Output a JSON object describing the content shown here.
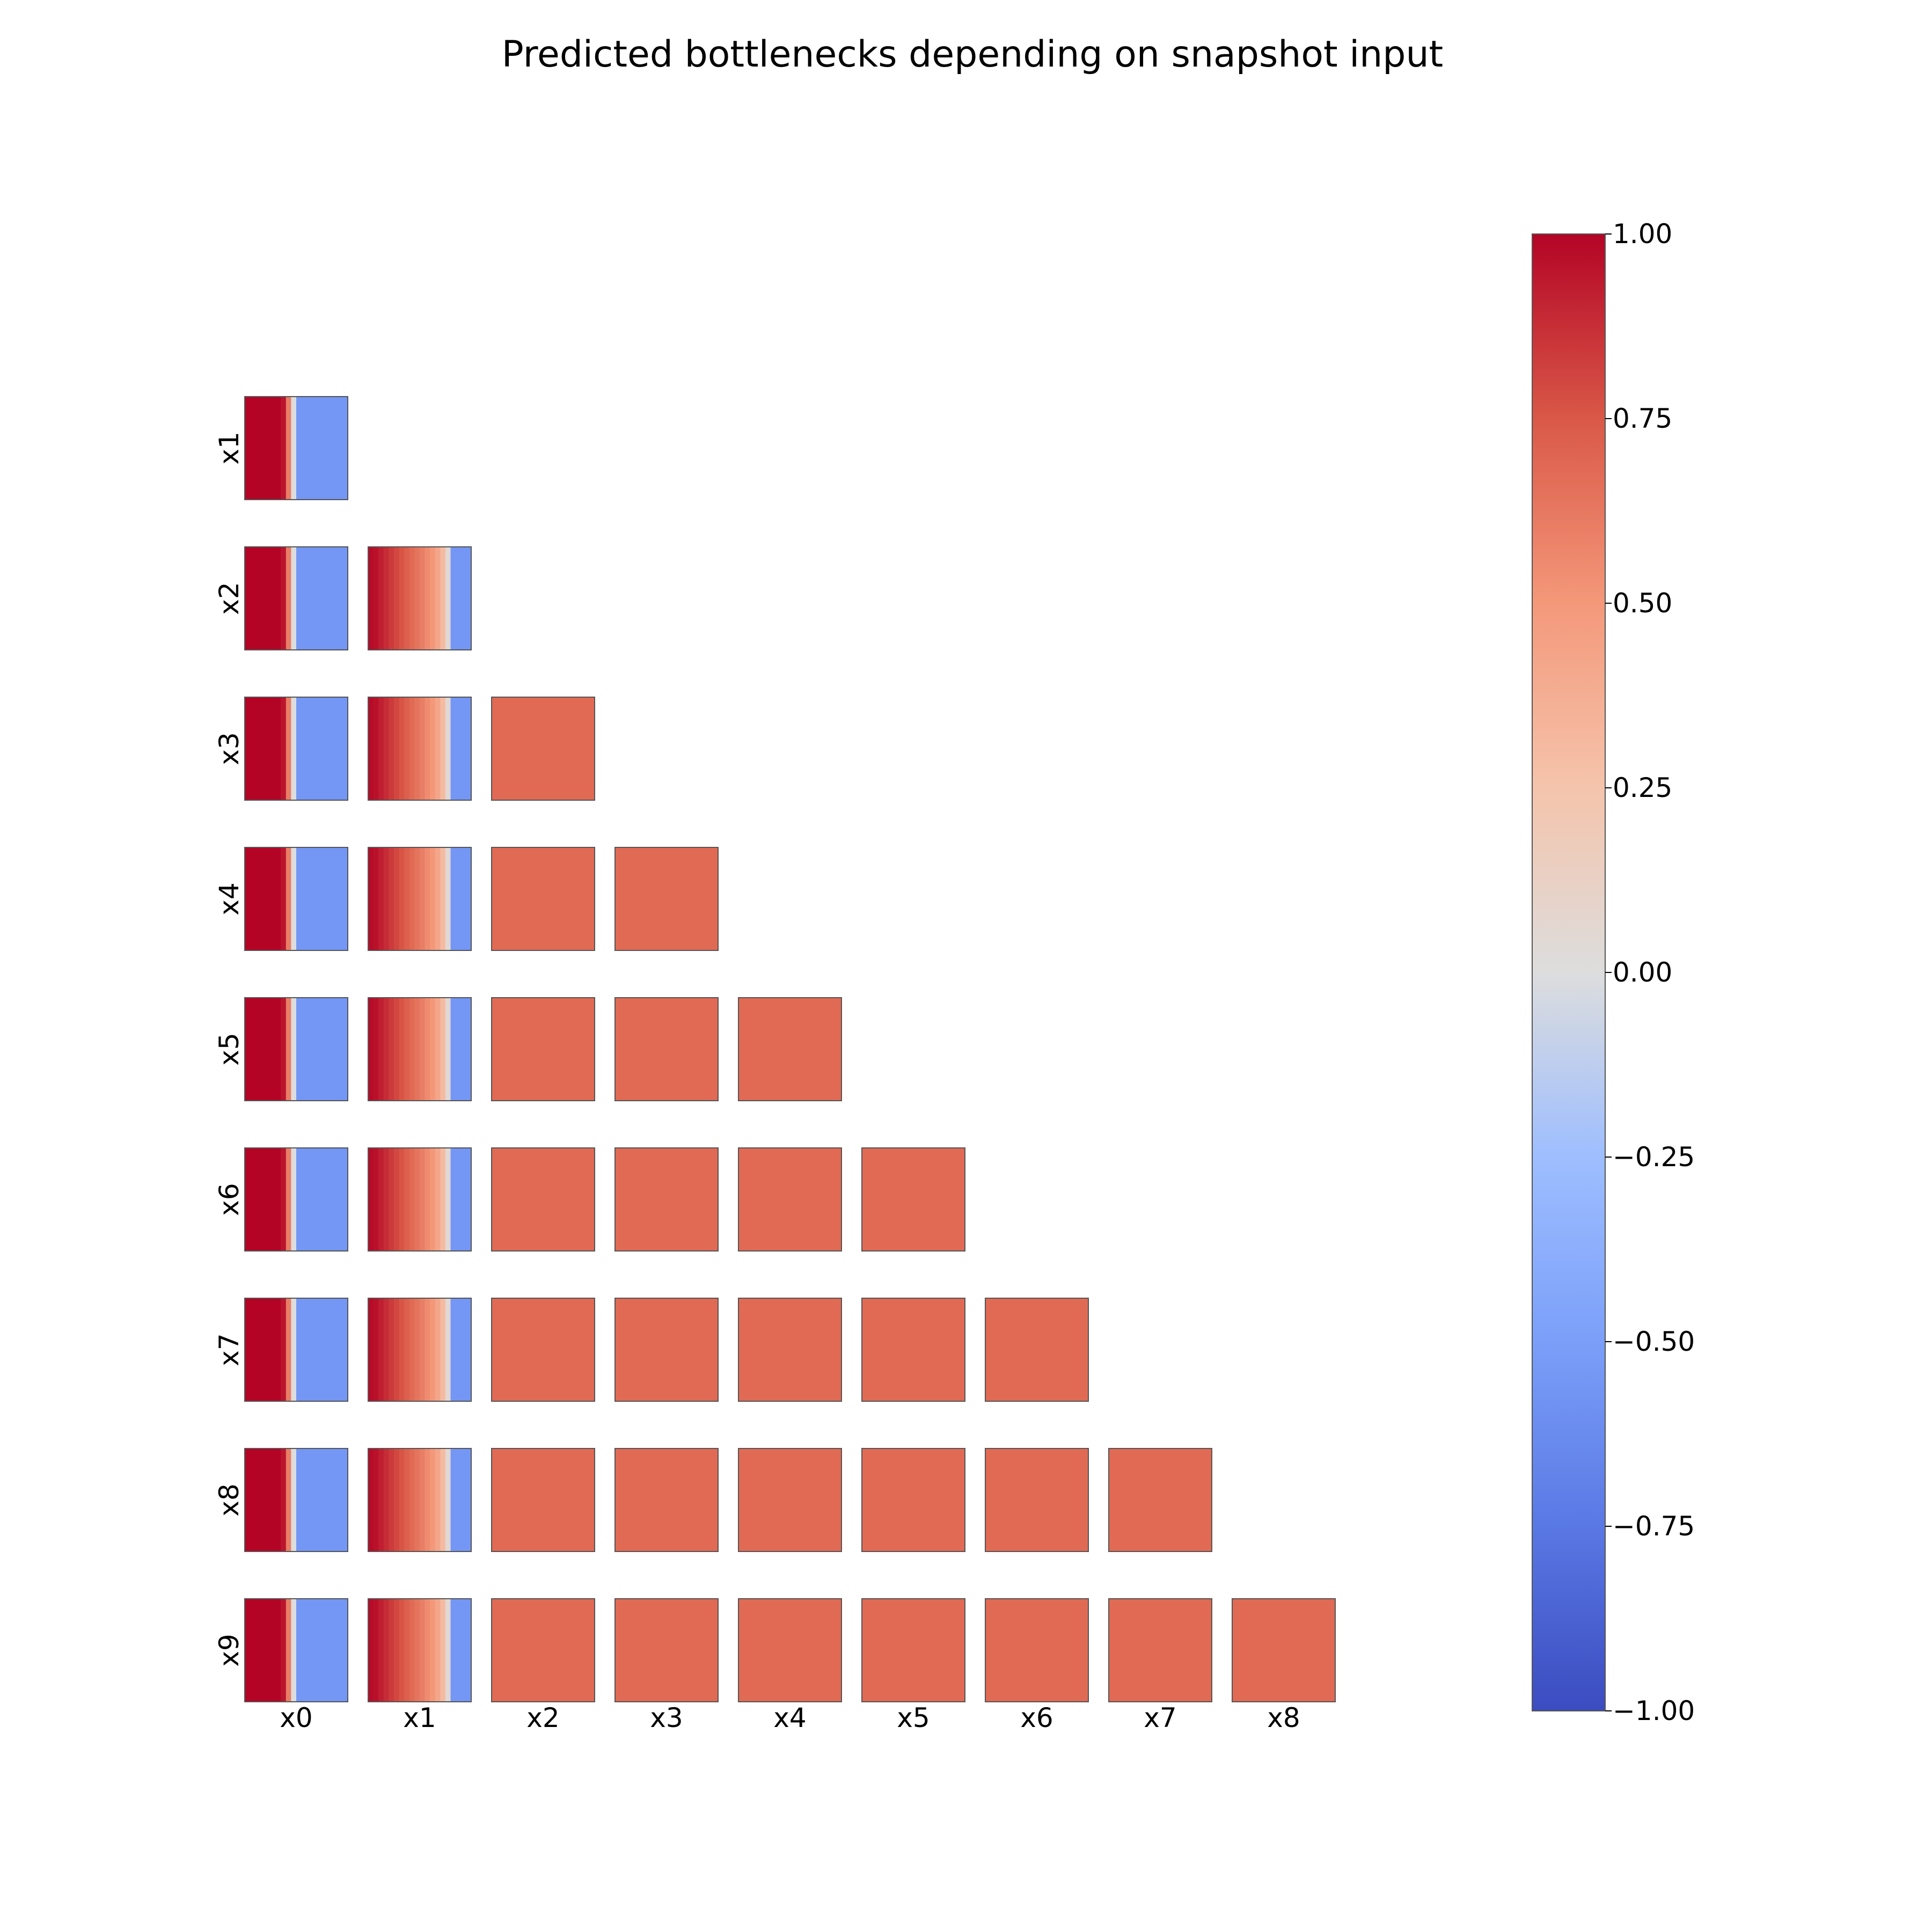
{
  "chart_data": {
    "type": "heatmap",
    "title": "Predicted bottlenecks depending on snapshot input",
    "colormap": "coolwarm",
    "col_labels": [
      "x0",
      "x1",
      "x2",
      "x3",
      "x4",
      "x5",
      "x6",
      "x7",
      "x8"
    ],
    "row_labels": [
      "x1",
      "x2",
      "x3",
      "x4",
      "x5",
      "x6",
      "x7",
      "x8",
      "x9"
    ],
    "colorbar": {
      "range": [
        -1.0,
        1.0
      ],
      "ticks": [
        "1.00",
        "0.75",
        "0.50",
        "0.25",
        "0.00",
        "−0.25",
        "−0.50",
        "−0.75",
        "−1.00"
      ],
      "tick_values": [
        1.0,
        0.75,
        0.5,
        0.25,
        0.0,
        -0.25,
        -0.5,
        -0.75,
        -1.0
      ]
    },
    "panel_value_profile": {
      "x0_column": [
        1.0,
        1.0,
        1.0,
        1.0,
        1.0,
        1.0,
        1.0,
        0.95,
        0.6,
        0.0,
        -0.55,
        -0.55,
        -0.55,
        -0.55,
        -0.55,
        -0.55,
        -0.55,
        -0.55,
        -0.55,
        -0.55
      ],
      "x1_column": [
        0.98,
        0.96,
        0.92,
        0.88,
        0.84,
        0.8,
        0.76,
        0.72,
        0.68,
        0.64,
        0.6,
        0.55,
        0.5,
        0.42,
        0.3,
        0.05,
        -0.55,
        -0.55,
        -0.55,
        -0.55
      ],
      "flat_panels_value": 0.68
    }
  }
}
